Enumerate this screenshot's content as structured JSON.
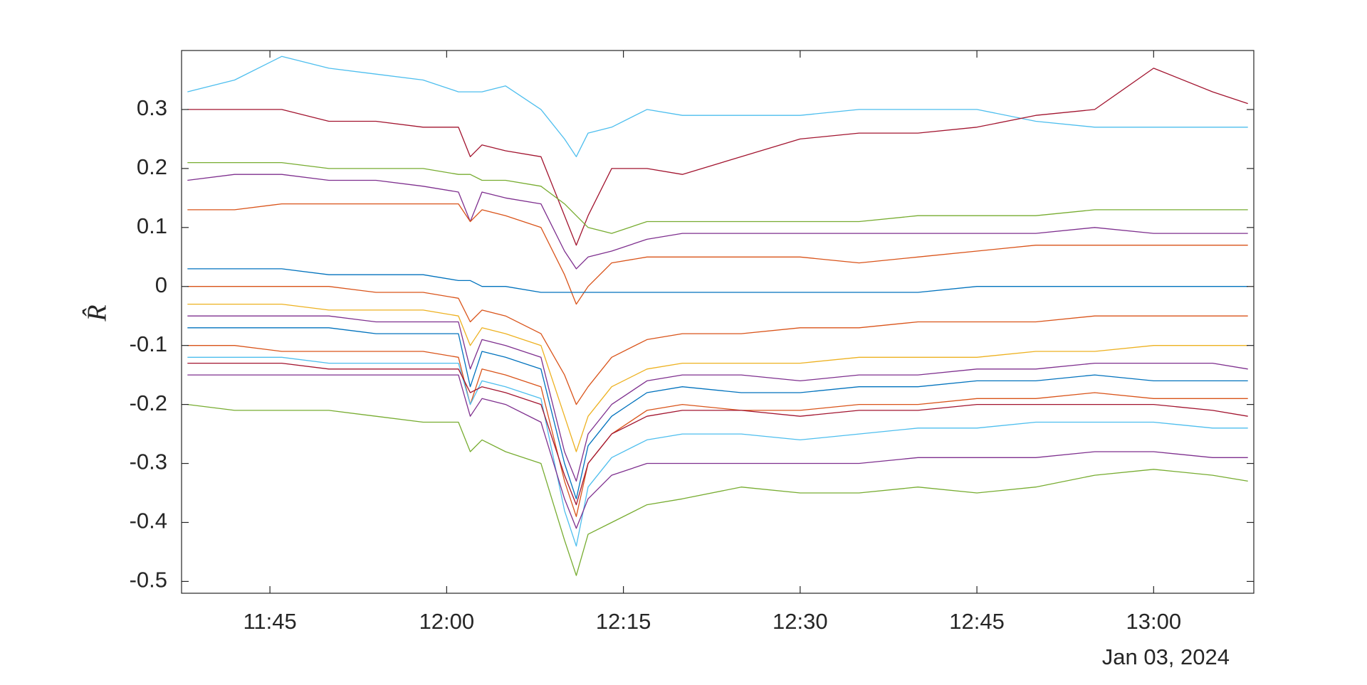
{
  "chart_data": {
    "type": "line",
    "ylabel": "R̂",
    "date_label": "Jan 03, 2024",
    "x": [
      "11:38",
      "11:42",
      "11:46",
      "11:50",
      "11:54",
      "11:58",
      "12:01",
      "12:02",
      "12:03",
      "12:05",
      "12:08",
      "12:10",
      "12:11",
      "12:12",
      "12:14",
      "12:17",
      "12:20",
      "12:25",
      "12:30",
      "12:35",
      "12:40",
      "12:45",
      "12:50",
      "12:55",
      "13:00",
      "13:05",
      "13:08"
    ],
    "xlim": [
      "11:37:30",
      "13:08:30"
    ],
    "xticks": [
      "11:45",
      "12:00",
      "12:15",
      "12:30",
      "12:45",
      "13:00"
    ],
    "ylim": [
      -0.52,
      0.4
    ],
    "yticks": [
      -0.5,
      -0.4,
      -0.3,
      -0.2,
      -0.1,
      0,
      0.1,
      0.2,
      0.3
    ],
    "grid": false,
    "series": [
      {
        "color": "#4DBEEE",
        "values": [
          0.33,
          0.35,
          0.39,
          0.37,
          0.36,
          0.35,
          0.33,
          0.33,
          0.33,
          0.34,
          0.3,
          0.25,
          0.22,
          0.26,
          0.27,
          0.3,
          0.29,
          0.29,
          0.29,
          0.3,
          0.3,
          0.3,
          0.28,
          0.27,
          0.27,
          0.27,
          0.27
        ]
      },
      {
        "color": "#A2142F",
        "values": [
          0.3,
          0.3,
          0.3,
          0.28,
          0.28,
          0.27,
          0.27,
          0.22,
          0.24,
          0.23,
          0.22,
          0.12,
          0.07,
          0.12,
          0.2,
          0.2,
          0.19,
          0.22,
          0.25,
          0.26,
          0.26,
          0.27,
          0.29,
          0.3,
          0.37,
          0.33,
          0.31
        ]
      },
      {
        "color": "#77AC30",
        "values": [
          0.21,
          0.21,
          0.21,
          0.2,
          0.2,
          0.2,
          0.19,
          0.19,
          0.18,
          0.18,
          0.17,
          0.14,
          0.12,
          0.1,
          0.09,
          0.11,
          0.11,
          0.11,
          0.11,
          0.11,
          0.12,
          0.12,
          0.12,
          0.13,
          0.13,
          0.13,
          0.13
        ]
      },
      {
        "color": "#7E2F8E",
        "values": [
          0.18,
          0.19,
          0.19,
          0.18,
          0.18,
          0.17,
          0.16,
          0.11,
          0.16,
          0.15,
          0.14,
          0.06,
          0.03,
          0.05,
          0.06,
          0.08,
          0.09,
          0.09,
          0.09,
          0.09,
          0.09,
          0.09,
          0.09,
          0.1,
          0.09,
          0.09,
          0.09
        ]
      },
      {
        "color": "#D95319",
        "values": [
          0.13,
          0.13,
          0.14,
          0.14,
          0.14,
          0.14,
          0.14,
          0.11,
          0.13,
          0.12,
          0.1,
          0.02,
          -0.03,
          0.0,
          0.04,
          0.05,
          0.05,
          0.05,
          0.05,
          0.04,
          0.05,
          0.06,
          0.07,
          0.07,
          0.07,
          0.07,
          0.07
        ]
      },
      {
        "color": "#0072BD",
        "values": [
          0.03,
          0.03,
          0.03,
          0.02,
          0.02,
          0.02,
          0.01,
          0.01,
          0.0,
          0.0,
          -0.01,
          -0.01,
          -0.01,
          -0.01,
          -0.01,
          -0.01,
          -0.01,
          -0.01,
          -0.01,
          -0.01,
          -0.01,
          0.0,
          0.0,
          0.0,
          0.0,
          0.0,
          0.0
        ]
      },
      {
        "color": "#D95319",
        "values": [
          0.0,
          0.0,
          0.0,
          0.0,
          -0.01,
          -0.01,
          -0.02,
          -0.06,
          -0.04,
          -0.05,
          -0.08,
          -0.15,
          -0.2,
          -0.17,
          -0.12,
          -0.09,
          -0.08,
          -0.08,
          -0.07,
          -0.07,
          -0.06,
          -0.06,
          -0.06,
          -0.05,
          -0.05,
          -0.05,
          -0.05
        ]
      },
      {
        "color": "#EDB120",
        "values": [
          -0.03,
          -0.03,
          -0.03,
          -0.04,
          -0.04,
          -0.04,
          -0.05,
          -0.1,
          -0.07,
          -0.08,
          -0.1,
          -0.22,
          -0.28,
          -0.22,
          -0.17,
          -0.14,
          -0.13,
          -0.13,
          -0.13,
          -0.12,
          -0.12,
          -0.12,
          -0.11,
          -0.11,
          -0.1,
          -0.1,
          -0.1
        ]
      },
      {
        "color": "#7E2F8E",
        "values": [
          -0.05,
          -0.05,
          -0.05,
          -0.05,
          -0.06,
          -0.06,
          -0.06,
          -0.14,
          -0.09,
          -0.1,
          -0.12,
          -0.28,
          -0.33,
          -0.25,
          -0.2,
          -0.16,
          -0.15,
          -0.15,
          -0.16,
          -0.15,
          -0.15,
          -0.14,
          -0.14,
          -0.13,
          -0.13,
          -0.13,
          -0.14
        ]
      },
      {
        "color": "#0072BD",
        "values": [
          -0.07,
          -0.07,
          -0.07,
          -0.07,
          -0.08,
          -0.08,
          -0.08,
          -0.17,
          -0.11,
          -0.12,
          -0.14,
          -0.3,
          -0.36,
          -0.27,
          -0.22,
          -0.18,
          -0.17,
          -0.18,
          -0.18,
          -0.17,
          -0.17,
          -0.16,
          -0.16,
          -0.15,
          -0.16,
          -0.16,
          -0.16
        ]
      },
      {
        "color": "#D95319",
        "values": [
          -0.1,
          -0.1,
          -0.11,
          -0.11,
          -0.11,
          -0.11,
          -0.12,
          -0.2,
          -0.14,
          -0.15,
          -0.17,
          -0.33,
          -0.39,
          -0.3,
          -0.25,
          -0.21,
          -0.2,
          -0.21,
          -0.21,
          -0.2,
          -0.2,
          -0.19,
          -0.19,
          -0.18,
          -0.19,
          -0.19,
          -0.19
        ]
      },
      {
        "color": "#4DBEEE",
        "values": [
          -0.12,
          -0.12,
          -0.12,
          -0.13,
          -0.13,
          -0.13,
          -0.13,
          -0.2,
          -0.16,
          -0.17,
          -0.19,
          -0.38,
          -0.44,
          -0.34,
          -0.29,
          -0.26,
          -0.25,
          -0.25,
          -0.26,
          -0.25,
          -0.24,
          -0.24,
          -0.23,
          -0.23,
          -0.23,
          -0.24,
          -0.24
        ]
      },
      {
        "color": "#A2142F",
        "values": [
          -0.13,
          -0.13,
          -0.13,
          -0.14,
          -0.14,
          -0.14,
          -0.14,
          -0.18,
          -0.17,
          -0.18,
          -0.2,
          -0.32,
          -0.37,
          -0.3,
          -0.25,
          -0.22,
          -0.21,
          -0.21,
          -0.22,
          -0.21,
          -0.21,
          -0.2,
          -0.2,
          -0.2,
          -0.2,
          -0.21,
          -0.22
        ]
      },
      {
        "color": "#7E2F8E",
        "values": [
          -0.15,
          -0.15,
          -0.15,
          -0.15,
          -0.15,
          -0.15,
          -0.15,
          -0.22,
          -0.19,
          -0.2,
          -0.23,
          -0.36,
          -0.41,
          -0.36,
          -0.32,
          -0.3,
          -0.3,
          -0.3,
          -0.3,
          -0.3,
          -0.29,
          -0.29,
          -0.29,
          -0.28,
          -0.28,
          -0.29,
          -0.29
        ]
      },
      {
        "color": "#77AC30",
        "values": [
          -0.2,
          -0.21,
          -0.21,
          -0.21,
          -0.22,
          -0.23,
          -0.23,
          -0.28,
          -0.26,
          -0.28,
          -0.3,
          -0.43,
          -0.49,
          -0.42,
          -0.4,
          -0.37,
          -0.36,
          -0.34,
          -0.35,
          -0.35,
          -0.34,
          -0.35,
          -0.34,
          -0.32,
          -0.31,
          -0.32,
          -0.33
        ]
      }
    ]
  }
}
